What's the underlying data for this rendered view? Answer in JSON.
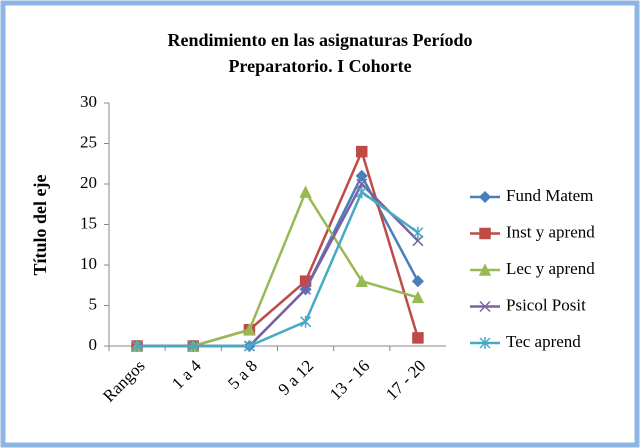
{
  "chart_data": {
    "type": "line",
    "title": [
      "Rendimiento en las asignaturas Período",
      "Preparatorio. I Cohorte"
    ],
    "y_label": "Título del eje",
    "categories": [
      "Rangos",
      "1 a 4",
      "5 a 8",
      "9 a 12",
      "13 - 16",
      "17 - 20"
    ],
    "series": [
      {
        "name": "Fund Matem",
        "color": "#4a7ebb",
        "marker": "diamond",
        "values": [
          0,
          0,
          0,
          7,
          21,
          8
        ]
      },
      {
        "name": "Inst y aprend",
        "color": "#be4b48",
        "marker": "square",
        "values": [
          0,
          0,
          2,
          8,
          24,
          1
        ]
      },
      {
        "name": "Lec y aprend",
        "color": "#98b954",
        "marker": "triangle",
        "values": [
          0,
          0,
          2,
          19,
          8,
          6
        ]
      },
      {
        "name": "Psicol Posit",
        "color": "#7d60a0",
        "marker": "x",
        "values": [
          0,
          0,
          0,
          7,
          20,
          13
        ]
      },
      {
        "name": "Tec aprend",
        "color": "#46aac5",
        "marker": "star",
        "values": [
          0,
          0,
          0,
          3,
          19,
          14
        ]
      }
    ],
    "ylim": [
      0,
      30
    ],
    "yticks": [
      0,
      5,
      10,
      15,
      20,
      25,
      30
    ],
    "grid": false,
    "legend": "right"
  }
}
